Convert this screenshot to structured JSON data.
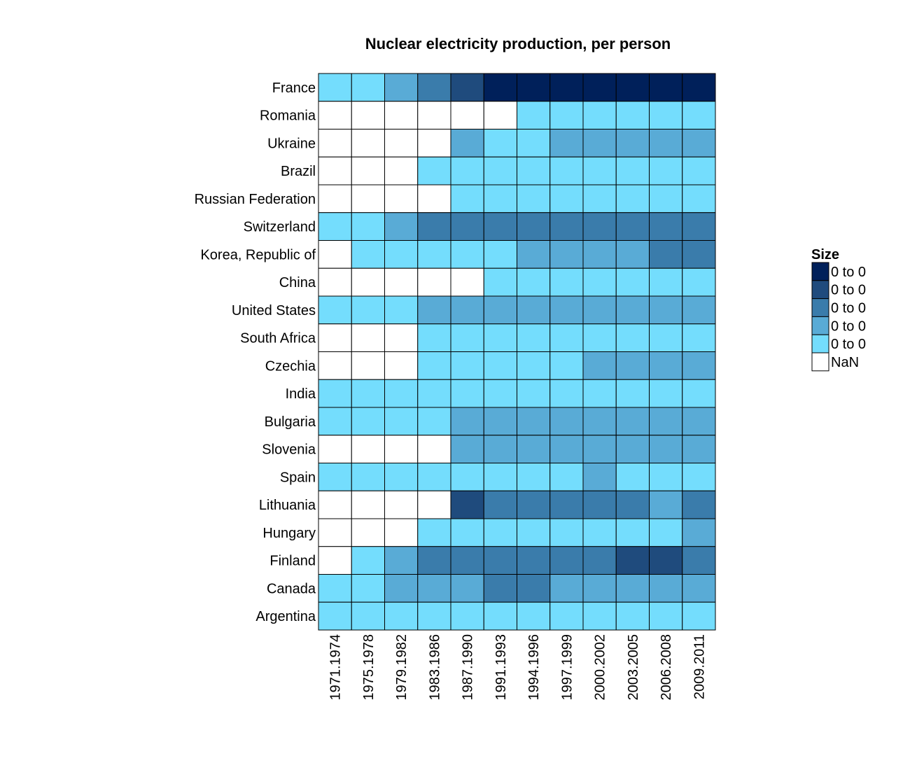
{
  "chart_data": {
    "type": "heatmap",
    "title": "Nuclear electricity production, per person",
    "rows": [
      "France",
      "Romania",
      "Ukraine",
      "Brazil",
      "Russian Federation",
      "Switzerland",
      "Korea, Republic of",
      "China",
      "United States",
      "South Africa",
      "Czechia",
      "India",
      "Bulgaria",
      "Slovenia",
      "Spain",
      "Lithuania",
      "Hungary",
      "Finland",
      "Canada",
      "Argentina"
    ],
    "columns": [
      "1971.1974",
      "1975.1978",
      "1979.1982",
      "1983.1986",
      "1987.1990",
      "1991.1993",
      "1994.1996",
      "1997.1999",
      "2000.2002",
      "2003.2005",
      "2006.2008",
      "2009.2011"
    ],
    "cells": [
      [
        1,
        1,
        2,
        3,
        4,
        5,
        5,
        5,
        5,
        5,
        5,
        5
      ],
      [
        null,
        null,
        null,
        null,
        null,
        null,
        1,
        1,
        1,
        1,
        1,
        1
      ],
      [
        null,
        null,
        null,
        null,
        2,
        1,
        1,
        2,
        2,
        2,
        2,
        2
      ],
      [
        null,
        null,
        null,
        1,
        1,
        1,
        1,
        1,
        1,
        1,
        1,
        1
      ],
      [
        null,
        null,
        null,
        null,
        1,
        1,
        1,
        1,
        1,
        1,
        1,
        1
      ],
      [
        1,
        1,
        2,
        3,
        3,
        3,
        3,
        3,
        3,
        3,
        3,
        3
      ],
      [
        null,
        1,
        1,
        1,
        1,
        1,
        2,
        2,
        2,
        2,
        3,
        3
      ],
      [
        null,
        null,
        null,
        null,
        null,
        1,
        1,
        1,
        1,
        1,
        1,
        1
      ],
      [
        1,
        1,
        1,
        2,
        2,
        2,
        2,
        2,
        2,
        2,
        2,
        2
      ],
      [
        null,
        null,
        null,
        1,
        1,
        1,
        1,
        1,
        1,
        1,
        1,
        1
      ],
      [
        null,
        null,
        null,
        1,
        1,
        1,
        1,
        1,
        2,
        2,
        2,
        2
      ],
      [
        1,
        1,
        1,
        1,
        1,
        1,
        1,
        1,
        1,
        1,
        1,
        1
      ],
      [
        1,
        1,
        1,
        1,
        2,
        2,
        2,
        2,
        2,
        2,
        2,
        2
      ],
      [
        null,
        null,
        null,
        null,
        2,
        2,
        2,
        2,
        2,
        2,
        2,
        2
      ],
      [
        1,
        1,
        1,
        1,
        1,
        1,
        1,
        1,
        2,
        1,
        1,
        1
      ],
      [
        null,
        null,
        null,
        null,
        4,
        3,
        3,
        3,
        3,
        3,
        2,
        3
      ],
      [
        null,
        null,
        null,
        1,
        1,
        1,
        1,
        1,
        1,
        1,
        1,
        2
      ],
      [
        null,
        1,
        2,
        3,
        3,
        3,
        3,
        3,
        3,
        4,
        4,
        3
      ],
      [
        1,
        1,
        2,
        2,
        2,
        3,
        3,
        2,
        2,
        2,
        2,
        2
      ],
      [
        1,
        1,
        1,
        1,
        1,
        1,
        1,
        1,
        1,
        1,
        1,
        1
      ]
    ],
    "colors": {
      "1": "#74ddfd",
      "2": "#59abd6",
      "3": "#3a7cab",
      "4": "#1f4b7d",
      "5": "#00205a",
      "nan": "#ffffff"
    },
    "legend": {
      "title": "Size",
      "position": "right",
      "entries": [
        {
          "label": "0 to 0",
          "level": 5
        },
        {
          "label": "0 to 0",
          "level": 4
        },
        {
          "label": "0 to 0",
          "level": 3
        },
        {
          "label": "0 to 0",
          "level": 2
        },
        {
          "label": "0 to 0",
          "level": 1
        },
        {
          "label": "NaN",
          "level": "nan"
        }
      ]
    }
  }
}
